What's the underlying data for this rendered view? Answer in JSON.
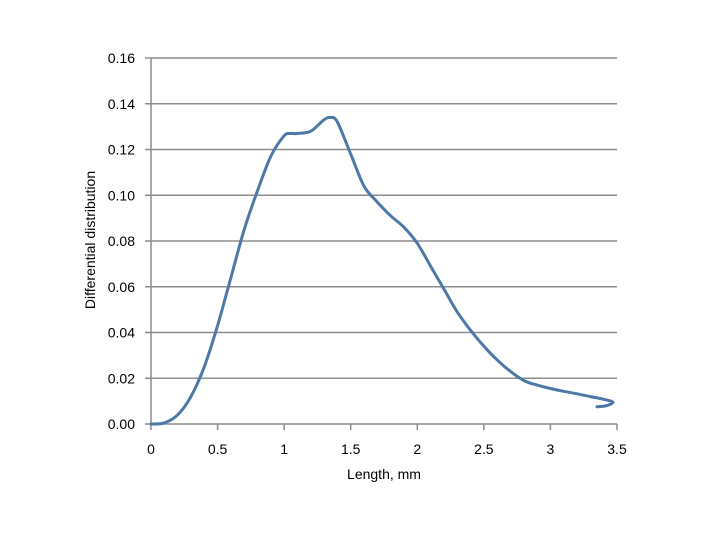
{
  "chart_data": {
    "type": "line",
    "xlabel": "Length, mm",
    "ylabel": "Differential distribution",
    "xlim": [
      0,
      3.5
    ],
    "ylim": [
      0,
      0.16
    ],
    "x_ticks": [
      "0",
      "0.5",
      "1",
      "1.5",
      "2",
      "2.5",
      "3",
      "3.5"
    ],
    "y_ticks": [
      "0.00",
      "0.02",
      "0.04",
      "0.06",
      "0.08",
      "0.10",
      "0.12",
      "0.14",
      "0.16"
    ],
    "grid": "horizontal",
    "legend": "none",
    "series": [
      {
        "color": "#4e79a7",
        "x": [
          0,
          0.1,
          0.2,
          0.3,
          0.4,
          0.5,
          0.6,
          0.7,
          0.8,
          0.9,
          1.0,
          1.05,
          1.1,
          1.2,
          1.3,
          1.35,
          1.4,
          1.5,
          1.6,
          1.7,
          1.8,
          1.9,
          2.0,
          2.1,
          2.2,
          2.3,
          2.4,
          2.5,
          2.6,
          2.7,
          2.8,
          2.9,
          3.0,
          3.1,
          3.2,
          3.3,
          3.4,
          3.47,
          3.42,
          3.35
        ],
        "y": [
          0.0,
          0.0005,
          0.004,
          0.012,
          0.025,
          0.043,
          0.064,
          0.085,
          0.102,
          0.117,
          0.126,
          0.127,
          0.127,
          0.128,
          0.133,
          0.134,
          0.132,
          0.118,
          0.104,
          0.097,
          0.091,
          0.086,
          0.079,
          0.069,
          0.059,
          0.049,
          0.041,
          0.034,
          0.028,
          0.023,
          0.019,
          0.017,
          0.0155,
          0.0143,
          0.0132,
          0.012,
          0.0108,
          0.0095,
          0.008,
          0.0075
        ]
      }
    ]
  }
}
